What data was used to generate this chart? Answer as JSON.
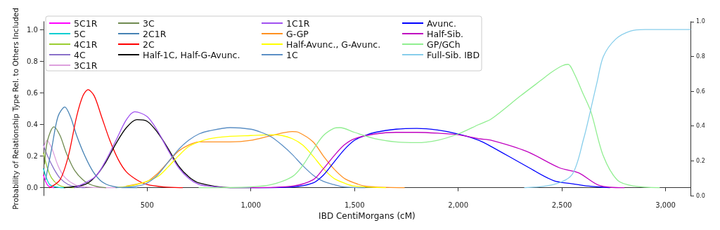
{
  "chart_data": {
    "type": "line",
    "xlabel": "IBD CentiMorgans (cM)",
    "ylabel": "Probability of Relationship Type Rel. to Others Included",
    "xlim": [
      0,
      3120
    ],
    "xticks": [
      {
        "value": 500,
        "label": "500"
      },
      {
        "value": 1000,
        "label": "1,000"
      },
      {
        "value": 1500,
        "label": "1,500"
      },
      {
        "value": 2000,
        "label": "2,000"
      },
      {
        "value": 2500,
        "label": "2,500"
      },
      {
        "value": 3000,
        "label": "3,000"
      }
    ],
    "ylim": [
      -0.05,
      1.05
    ],
    "yticks": [
      {
        "value": 0,
        "label": "0.0"
      },
      {
        "value": 0.2,
        "label": "0.2"
      },
      {
        "value": 0.4,
        "label": "0.4"
      },
      {
        "value": 0.6,
        "label": "0.6"
      },
      {
        "value": 0.8,
        "label": "0.8"
      },
      {
        "value": 1,
        "label": "1.0"
      }
    ],
    "y2lim": [
      0,
      1
    ],
    "y2ticks": [
      {
        "value": 0,
        "label": "0.0"
      },
      {
        "value": 0.2,
        "label": "0.2"
      },
      {
        "value": 0.4,
        "label": "0.4"
      },
      {
        "value": 0.6,
        "label": "0.6"
      },
      {
        "value": 0.8,
        "label": "0.8"
      },
      {
        "value": 1,
        "label": "1.0"
      }
    ],
    "grid": false,
    "marker": "none",
    "line_style": "solid",
    "legend": "top left",
    "series": [
      {
        "name": "5C1R",
        "color": "#ff00ff",
        "x": [
          0,
          10,
          25,
          50
        ],
        "values": [
          0.08,
          0.04,
          0.01,
          0
        ]
      },
      {
        "name": "5C",
        "color": "#00ced1",
        "x": [
          0,
          15,
          30,
          60,
          100
        ],
        "values": [
          0.12,
          0.06,
          0.02,
          0.005,
          0
        ]
      },
      {
        "name": "4C1R",
        "color": "#9acd32",
        "x": [
          0,
          20,
          40,
          70,
          100,
          150
        ],
        "values": [
          0.22,
          0.12,
          0.06,
          0.02,
          0.005,
          0
        ]
      },
      {
        "name": "4C",
        "color": "#8a70c9",
        "x": [
          0,
          20,
          50,
          80,
          120,
          160,
          200
        ],
        "values": [
          0.27,
          0.2,
          0.12,
          0.06,
          0.02,
          0.005,
          0
        ]
      },
      {
        "name": "3C1R",
        "color": "#dda0dd",
        "x": [
          0,
          17,
          40,
          70,
          100,
          150,
          200,
          350
        ],
        "values": [
          0.25,
          0.3,
          0.25,
          0.14,
          0.07,
          0.02,
          0.005,
          0
        ]
      },
      {
        "name": "3C",
        "color": "#6f8a50",
        "x": [
          5,
          20,
          50,
          80,
          110,
          150,
          200,
          250,
          300
        ],
        "values": [
          0.15,
          0.3,
          0.385,
          0.33,
          0.22,
          0.11,
          0.04,
          0.01,
          0
        ]
      },
      {
        "name": "2C1R",
        "color": "#4682b4",
        "x": [
          10,
          40,
          70,
          103,
          130,
          160,
          200,
          240,
          280,
          330,
          400,
          450
        ],
        "values": [
          0.05,
          0.25,
          0.45,
          0.51,
          0.45,
          0.33,
          0.2,
          0.1,
          0.04,
          0.01,
          0,
          0
        ]
      },
      {
        "name": "2C",
        "color": "#ff0000",
        "x": [
          30,
          80,
          120,
          160,
          190,
          215,
          245,
          280,
          320,
          360,
          400,
          450,
          500,
          580,
          670
        ],
        "values": [
          0,
          0.05,
          0.2,
          0.45,
          0.58,
          0.62,
          0.58,
          0.45,
          0.3,
          0.18,
          0.1,
          0.05,
          0.02,
          0.005,
          0
        ]
      },
      {
        "name": "Half-1C, Half-G-Avunc.",
        "color": "#000000",
        "x": [
          100,
          200,
          250,
          300,
          350,
          400,
          450,
          500,
          550,
          600,
          650,
          700,
          750,
          900,
          1000
        ],
        "values": [
          0,
          0.02,
          0.07,
          0.16,
          0.28,
          0.38,
          0.43,
          0.42,
          0.35,
          0.25,
          0.14,
          0.07,
          0.03,
          0,
          0
        ]
      },
      {
        "name": "1C1R",
        "color": "#a050f0",
        "x": [
          150,
          250,
          300,
          350,
          400,
          440,
          500,
          550,
          600,
          650,
          700,
          750,
          800,
          900,
          1000
        ],
        "values": [
          0,
          0.07,
          0.17,
          0.3,
          0.43,
          0.48,
          0.45,
          0.36,
          0.24,
          0.13,
          0.06,
          0.02,
          0.01,
          0,
          0
        ]
      },
      {
        "name": "G-GP",
        "color": "#ff9020",
        "x": [
          400,
          500,
          550,
          600,
          650,
          700,
          750,
          800,
          900,
          1000,
          1100,
          1200,
          1230,
          1300,
          1350,
          1400,
          1450,
          1500,
          1550,
          1600,
          1740
        ],
        "values": [
          0.01,
          0.04,
          0.09,
          0.16,
          0.23,
          0.27,
          0.29,
          0.29,
          0.29,
          0.3,
          0.33,
          0.355,
          0.35,
          0.29,
          0.2,
          0.12,
          0.06,
          0.03,
          0.01,
          0.005,
          0
        ]
      },
      {
        "name": "Half-Avunc., G-Avunc.",
        "color": "#ffff00",
        "x": [
          350,
          450,
          550,
          600,
          650,
          700,
          750,
          800,
          900,
          1000,
          1100,
          1150,
          1200,
          1250,
          1300,
          1350,
          1400,
          1450,
          1500,
          1650
        ],
        "values": [
          0,
          0.02,
          0.07,
          0.13,
          0.2,
          0.26,
          0.29,
          0.31,
          0.325,
          0.33,
          0.335,
          0.33,
          0.31,
          0.27,
          0.2,
          0.12,
          0.06,
          0.03,
          0.01,
          0
        ]
      },
      {
        "name": "1C",
        "color": "#5b8fc5",
        "x": [
          350,
          450,
          500,
          550,
          600,
          650,
          700,
          750,
          800,
          900,
          1000,
          1050,
          1100,
          1150,
          1200,
          1250,
          1300,
          1350,
          1400,
          1450,
          1550
        ],
        "values": [
          0,
          0.01,
          0.03,
          0.08,
          0.16,
          0.24,
          0.3,
          0.34,
          0.36,
          0.38,
          0.37,
          0.35,
          0.32,
          0.27,
          0.21,
          0.14,
          0.08,
          0.04,
          0.02,
          0.005,
          0
        ]
      },
      {
        "name": "Avunc.",
        "color": "#0000ff",
        "x": [
          1000,
          1200,
          1300,
          1350,
          1400,
          1450,
          1500,
          1550,
          1600,
          1700,
          1800,
          1900,
          2000,
          2100,
          2160,
          2330,
          2460,
          2550,
          2630,
          2730
        ],
        "values": [
          0,
          0.005,
          0.03,
          0.08,
          0.16,
          0.24,
          0.3,
          0.33,
          0.35,
          0.37,
          0.375,
          0.365,
          0.34,
          0.3,
          0.26,
          0.135,
          0.045,
          0.025,
          0.01,
          0
        ]
      },
      {
        "name": "Half-Sib.",
        "color": "#c000c0",
        "x": [
          1000,
          1200,
          1300,
          1350,
          1400,
          1450,
          1500,
          1600,
          1700,
          1800,
          1900,
          2000,
          2100,
          2160,
          2330,
          2490,
          2580,
          2680,
          2800
        ],
        "values": [
          0,
          0.01,
          0.05,
          0.12,
          0.2,
          0.27,
          0.31,
          0.34,
          0.35,
          0.35,
          0.345,
          0.335,
          0.31,
          0.3,
          0.23,
          0.125,
          0.095,
          0.015,
          0
        ]
      },
      {
        "name": "GP/GCh",
        "color": "#90ee90",
        "x": [
          750,
          1000,
          1100,
          1200,
          1250,
          1300,
          1350,
          1400,
          1430,
          1500,
          1600,
          1700,
          1800,
          1900,
          2000,
          2100,
          2160,
          2300,
          2400,
          2450,
          2500,
          2530,
          2560,
          2600,
          2640,
          2700,
          2770,
          2850,
          2970
        ],
        "values": [
          0,
          0.005,
          0.02,
          0.07,
          0.14,
          0.24,
          0.33,
          0.375,
          0.38,
          0.35,
          0.31,
          0.29,
          0.285,
          0.3,
          0.34,
          0.4,
          0.435,
          0.58,
          0.68,
          0.73,
          0.77,
          0.78,
          0.72,
          0.6,
          0.48,
          0.2,
          0.045,
          0.01,
          0
        ]
      },
      {
        "name": "Full-Sib. IBD",
        "color": "#87ceeb",
        "x": [
          2320,
          2460,
          2550,
          2605,
          2640,
          2670,
          2700,
          2760,
          2830,
          2900,
          3120
        ],
        "values": [
          0,
          0.02,
          0.085,
          0.31,
          0.5,
          0.67,
          0.83,
          0.94,
          0.99,
          1,
          1
        ]
      }
    ]
  }
}
